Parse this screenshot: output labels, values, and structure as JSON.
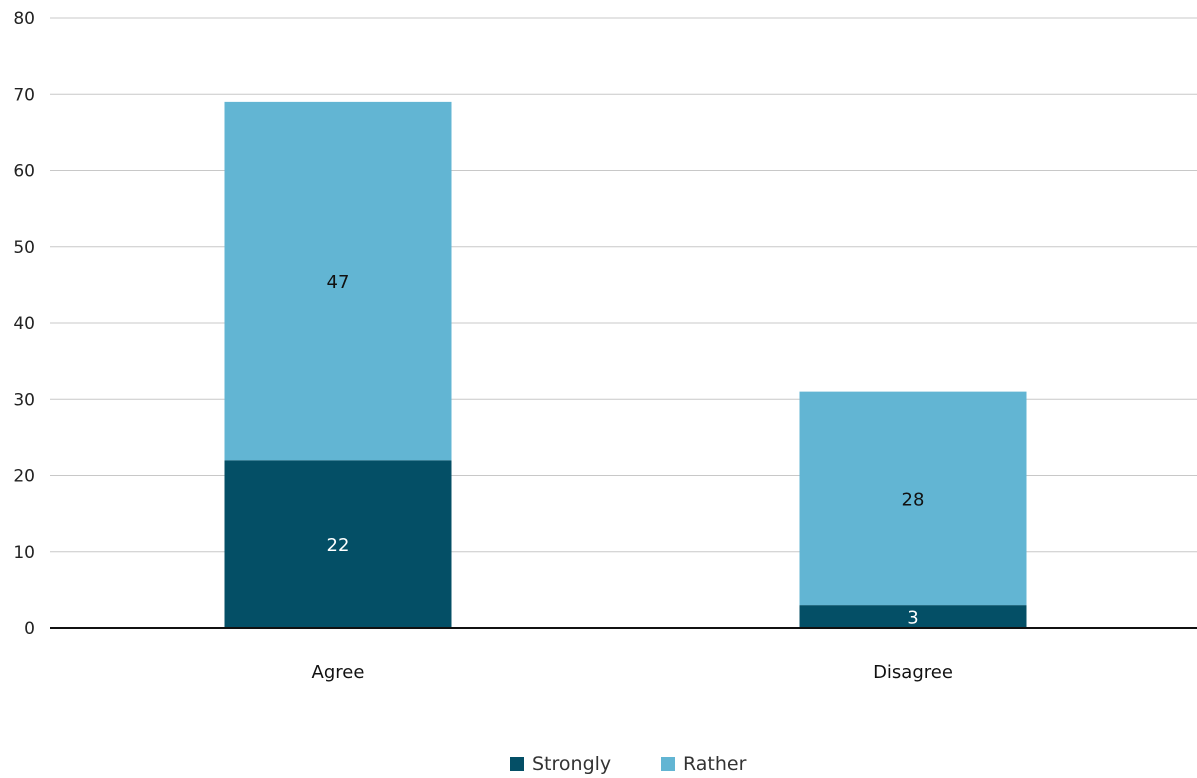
{
  "chart_data": {
    "type": "bar",
    "stacked": true,
    "categories": [
      "Agree",
      "Disagree"
    ],
    "series": [
      {
        "name": "Strongly",
        "values": [
          22,
          3
        ],
        "color": "#044f66",
        "label_color": "#ffffff"
      },
      {
        "name": "Rather",
        "values": [
          47,
          28
        ],
        "color": "#62b5d3",
        "label_color": "#111111"
      }
    ],
    "title": "",
    "xlabel": "",
    "ylabel": "",
    "ylim": [
      0,
      80
    ],
    "yticks": [
      0,
      10,
      20,
      30,
      40,
      50,
      60,
      70,
      80
    ],
    "grid": true,
    "legend_position": "bottom-center"
  }
}
